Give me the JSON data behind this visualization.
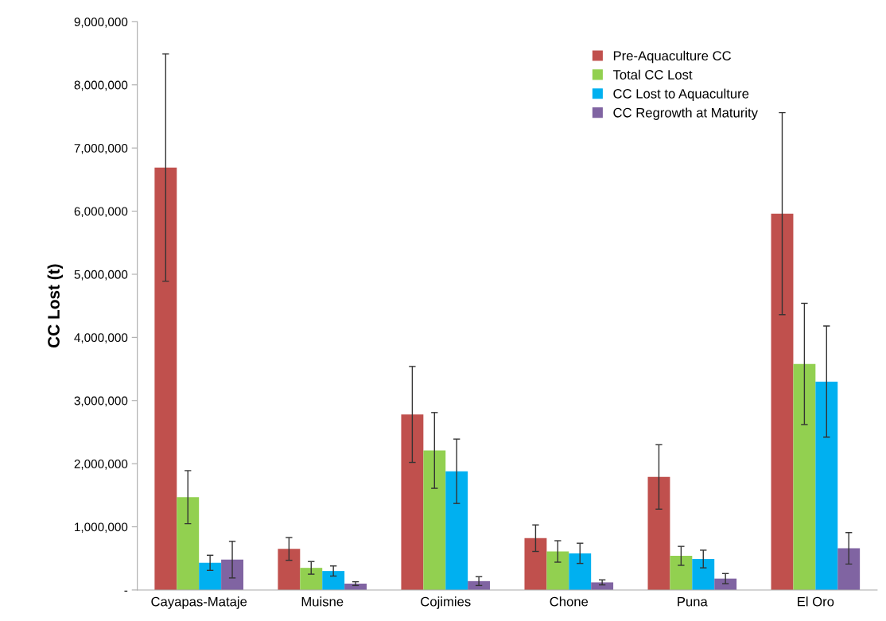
{
  "chart_data": {
    "type": "bar",
    "ylabel": "CC Lost (t)",
    "categories": [
      "Cayapas-Mataje",
      "Muisne",
      "Cojimies",
      "Chone",
      "Puna",
      "El Oro"
    ],
    "series": [
      {
        "name": "Pre-Aquaculture CC",
        "color": "#c0504d",
        "values": [
          6690000,
          650000,
          2780000,
          820000,
          1790000,
          5960000
        ],
        "errors": [
          1800000,
          180000,
          760000,
          210000,
          510000,
          1600000
        ]
      },
      {
        "name": "Total CC Lost",
        "color": "#92d050",
        "values": [
          1470000,
          350000,
          2210000,
          610000,
          540000,
          3580000
        ],
        "errors": [
          420000,
          100000,
          600000,
          170000,
          150000,
          960000
        ]
      },
      {
        "name": "CC Lost to Aquaculture",
        "color": "#00b0f0",
        "values": [
          430000,
          300000,
          1880000,
          580000,
          490000,
          3300000
        ],
        "errors": [
          120000,
          80000,
          510000,
          160000,
          140000,
          880000
        ]
      },
      {
        "name": "CC Regrowth at Maturity",
        "color": "#8064a2",
        "values": [
          480000,
          100000,
          140000,
          120000,
          180000,
          660000
        ],
        "errors": [
          290000,
          30000,
          70000,
          40000,
          80000,
          250000
        ]
      }
    ],
    "ylim": [
      0,
      9000000
    ],
    "yticks": [
      {
        "value": 0,
        "label": "-"
      },
      {
        "value": 1000000,
        "label": "1,000,000"
      },
      {
        "value": 2000000,
        "label": "2,000,000"
      },
      {
        "value": 3000000,
        "label": "3,000,000"
      },
      {
        "value": 4000000,
        "label": "4,000,000"
      },
      {
        "value": 5000000,
        "label": "5,000,000"
      },
      {
        "value": 6000000,
        "label": "6,000,000"
      },
      {
        "value": 7000000,
        "label": "7,000,000"
      },
      {
        "value": 8000000,
        "label": "8,000,000"
      },
      {
        "value": 9000000,
        "label": "9,000,000"
      }
    ],
    "grid": false,
    "legend": "top right"
  }
}
